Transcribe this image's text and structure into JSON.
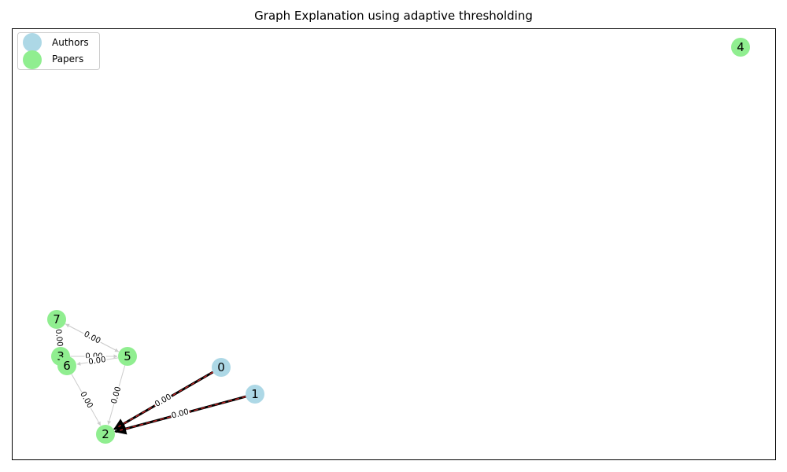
{
  "title": "Graph Explanation using adaptive thresholding",
  "legend": {
    "placement": "top-left",
    "entries": [
      {
        "label": "Authors",
        "color": "#add8e6"
      },
      {
        "label": "Papers",
        "color": "#90ee90"
      }
    ]
  },
  "node_colors": {
    "author": "#add8e6",
    "paper": "#90ee90"
  },
  "nodes": [
    {
      "id": "0",
      "kind": "author"
    },
    {
      "id": "1",
      "kind": "author"
    },
    {
      "id": "2",
      "kind": "paper"
    },
    {
      "id": "3",
      "kind": "paper"
    },
    {
      "id": "4",
      "kind": "paper"
    },
    {
      "id": "5",
      "kind": "paper"
    },
    {
      "id": "6",
      "kind": "paper"
    },
    {
      "id": "7",
      "kind": "paper"
    }
  ],
  "edges": [
    {
      "source": "0",
      "target": "2",
      "label": "0.00",
      "highlighted": true
    },
    {
      "source": "1",
      "target": "2",
      "label": "0.00",
      "highlighted": true
    },
    {
      "source": "5",
      "target": "2",
      "label": "0.00",
      "highlighted": false
    },
    {
      "source": "6",
      "target": "2",
      "label": "0.00",
      "highlighted": false
    },
    {
      "source": "5",
      "target": "7",
      "label": "0.00",
      "highlighted": false
    },
    {
      "source": "7",
      "target": "5",
      "label": "0.00",
      "highlighted": false
    },
    {
      "source": "3",
      "target": "5",
      "label": "0.00",
      "highlighted": false
    },
    {
      "source": "5",
      "target": "6",
      "label": "0.00",
      "highlighted": false
    },
    {
      "source": "7",
      "target": "3",
      "label": "0.00",
      "highlighted": false
    }
  ],
  "colors": {
    "highlight_edge": "#000000",
    "highlight_dash": "#d62728",
    "normal_edge": "#cccccc"
  }
}
